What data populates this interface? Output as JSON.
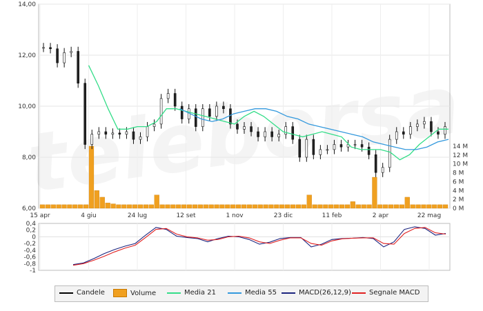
{
  "chart_data": [
    {
      "type": "candlestick",
      "title": "",
      "xlabel": "",
      "ylabel": "",
      "ylim": [
        6,
        14
      ],
      "y_ticks": [
        "14,00",
        "12,00",
        "10,00",
        "8,00",
        "6,00"
      ],
      "x_ticks": [
        "15 apr",
        "4 giu",
        "24 lug",
        "12 set",
        "1 nov",
        "23 dic",
        "11 feb",
        "2 apr",
        "22 mag"
      ],
      "volume_ticks": [
        "14 M",
        "12 M",
        "10 M",
        "8 M",
        "6 M",
        "4 M",
        "2 M",
        "0 M"
      ],
      "series": [
        {
          "name": "Candele",
          "color": "#000000",
          "values": [
            12.3,
            12.25,
            11.7,
            12.1,
            12.15,
            10.9,
            8.5,
            8.9,
            9.0,
            8.9,
            8.95,
            8.9,
            9.0,
            8.7,
            8.8,
            9.2,
            9.3,
            10.3,
            10.5,
            10.0,
            9.5,
            9.9,
            9.2,
            9.9,
            9.6,
            10.0,
            9.9,
            9.3,
            9.1,
            9.2,
            9.0,
            8.8,
            9.0,
            8.8,
            8.9,
            9.2,
            8.7,
            8.0,
            8.7,
            8.1,
            8.3,
            8.3,
            8.5,
            8.4,
            8.5,
            8.5,
            8.4,
            8.1,
            7.4,
            7.6,
            8.7,
            9.0,
            8.9,
            9.2,
            9.3,
            9.4,
            9.0,
            8.9,
            9.2
          ]
        },
        {
          "name": "Volume",
          "color": "#f0a020",
          "unit": "M",
          "values": [
            0.8,
            0.8,
            0.8,
            0.8,
            0.8,
            0.8,
            0.8,
            0.8,
            0.8,
            14.0,
            4.0,
            2.5,
            1.2,
            1.0,
            0.8,
            0.8,
            0.8,
            0.8,
            0.8,
            0.8,
            0.8,
            3.0,
            0.8,
            0.8,
            0.8,
            0.8,
            0.8,
            0.8,
            0.8,
            0.8,
            0.8,
            0.8,
            0.8,
            0.8,
            0.8,
            0.8,
            0.8,
            0.8,
            0.8,
            0.8,
            0.8,
            0.8,
            0.8,
            0.8,
            0.8,
            0.8,
            0.8,
            0.8,
            0.8,
            3.0,
            0.8,
            0.8,
            0.8,
            0.8,
            0.8,
            0.8,
            0.8,
            1.5,
            0.8,
            0.8,
            0.8,
            7.0,
            0.8,
            0.8,
            0.8,
            0.8,
            0.8,
            2.5,
            0.8,
            0.8,
            0.8,
            0.8,
            0.8,
            0.8,
            0.8
          ]
        },
        {
          "name": "Media 21",
          "color": "#33dd88",
          "values": [
            null,
            null,
            null,
            null,
            null,
            11.6,
            10.8,
            9.9,
            9.1,
            9.1,
            9.2,
            9.2,
            9.4,
            9.9,
            9.9,
            9.8,
            9.7,
            9.6,
            9.5,
            9.4,
            9.3,
            9.6,
            9.8,
            9.6,
            9.3,
            9.0,
            8.9,
            8.8,
            8.9,
            9.0,
            8.9,
            8.8,
            8.4,
            8.3,
            8.3,
            8.3,
            8.2,
            7.9,
            8.1,
            8.5,
            8.8,
            9.1,
            9.1
          ]
        },
        {
          "name": "Media 55",
          "color": "#3399dd",
          "values": [
            null,
            null,
            null,
            null,
            null,
            null,
            null,
            null,
            null,
            null,
            null,
            null,
            null,
            9.9,
            9.7,
            9.5,
            9.4,
            9.5,
            9.7,
            9.8,
            9.9,
            9.9,
            9.8,
            9.6,
            9.5,
            9.3,
            9.2,
            9.1,
            9.0,
            8.9,
            8.8,
            8.6,
            8.5,
            8.4,
            8.3,
            8.3,
            8.4,
            8.6,
            8.7
          ]
        }
      ],
      "legend_position": "bottom"
    },
    {
      "type": "line",
      "title": "",
      "xlabel": "",
      "ylabel": "",
      "ylim": [
        -1,
        0.4
      ],
      "y_ticks": [
        "0,4",
        "0,2",
        "0",
        "-0,2",
        "-0,4",
        "-0,6",
        "-0,8",
        "-1"
      ],
      "series": [
        {
          "name": "MACD(26,12,9)",
          "color": "#1a237e",
          "values": [
            -0.83,
            -0.78,
            -0.65,
            -0.5,
            -0.38,
            -0.28,
            -0.2,
            0.05,
            0.28,
            0.22,
            0.02,
            -0.02,
            -0.05,
            -0.15,
            -0.05,
            0.02,
            0.0,
            -0.08,
            -0.22,
            -0.16,
            -0.05,
            -0.02,
            -0.02,
            -0.3,
            -0.22,
            -0.08,
            -0.05,
            -0.04,
            -0.02,
            -0.05,
            -0.3,
            -0.15,
            0.22,
            0.3,
            0.25,
            0.05,
            0.1
          ]
        },
        {
          "name": "Segnale MACD",
          "color": "#e02020",
          "values": [
            -0.85,
            -0.8,
            -0.7,
            -0.58,
            -0.45,
            -0.34,
            -0.25,
            -0.02,
            0.22,
            0.25,
            0.08,
            0.0,
            -0.03,
            -0.1,
            -0.08,
            0.0,
            0.02,
            -0.03,
            -0.15,
            -0.2,
            -0.1,
            -0.03,
            -0.03,
            -0.2,
            -0.25,
            -0.12,
            -0.06,
            -0.04,
            -0.03,
            -0.03,
            -0.2,
            -0.22,
            0.1,
            0.25,
            0.28,
            0.12,
            0.08
          ]
        }
      ]
    }
  ],
  "watermark": "teleborsa",
  "legend": [
    {
      "label": "Candele",
      "color": "#000000",
      "kind": "line"
    },
    {
      "label": "Volume",
      "color": "#f0a020",
      "kind": "box"
    },
    {
      "label": "Media 21",
      "color": "#33dd88",
      "kind": "line"
    },
    {
      "label": "Media 55",
      "color": "#3399dd",
      "kind": "line"
    },
    {
      "label": "MACD(26,12,9)",
      "color": "#1a237e",
      "kind": "line"
    },
    {
      "label": "Segnale MACD",
      "color": "#e02020",
      "kind": "line"
    }
  ]
}
